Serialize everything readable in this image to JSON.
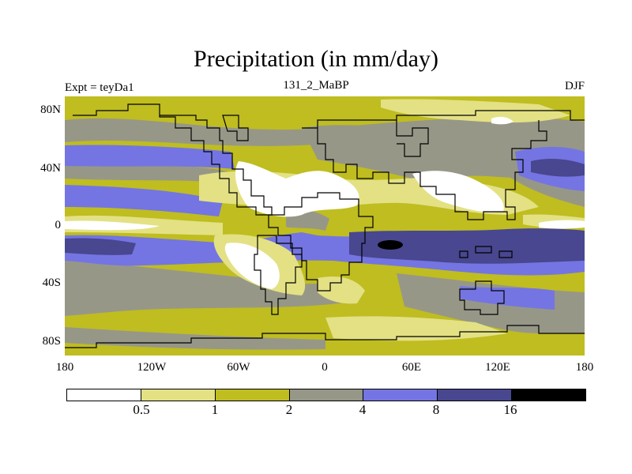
{
  "title": "Precipitation (in mm/day)",
  "subtitle_left": "Expt = teyDa1",
  "subtitle_center": "131_2_MaBP",
  "subtitle_right": "DJF",
  "lat_labels": [
    "80N",
    "40N",
    "0",
    "40S",
    "80S"
  ],
  "lon_labels": [
    "180",
    "120W",
    "60W",
    "0",
    "60E",
    "120E",
    "180"
  ],
  "colorbar": {
    "labels": [
      "0.5",
      "1",
      "2",
      "4",
      "8",
      "16"
    ],
    "colors": [
      "#ffffff",
      "#e3e184",
      "#bfbd20",
      "#979788",
      "#7475e2",
      "#48478f",
      "#000000"
    ]
  },
  "colors": {
    "white": "#ffffff",
    "light_yellow": "#e3e184",
    "olive": "#bfbd20",
    "gray": "#979788",
    "blue": "#7475e2",
    "dark_blue": "#48478f",
    "black": "#000000"
  }
}
